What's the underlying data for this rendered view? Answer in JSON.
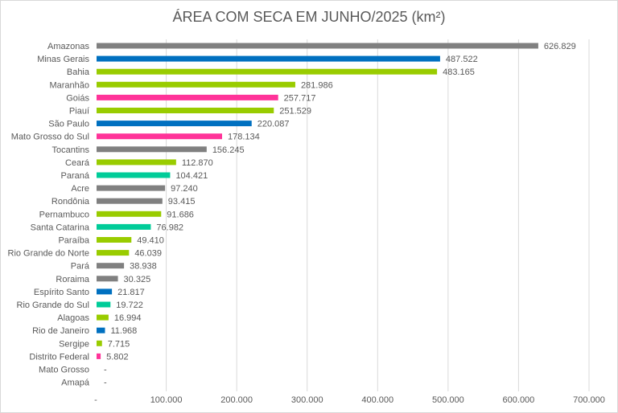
{
  "chart_data": {
    "type": "bar",
    "orientation": "horizontal",
    "title": "ÁREA COM SECA EM JUNHO/2025 (km²)",
    "xlabel": "",
    "ylabel": "",
    "xlim": [
      0,
      700000
    ],
    "x_ticks": [
      "-",
      "100.000",
      "200.000",
      "300.000",
      "400.000",
      "500.000",
      "600.000",
      "700.000"
    ],
    "x_tick_values": [
      0,
      100000,
      200000,
      300000,
      400000,
      500000,
      600000,
      700000
    ],
    "grid": true,
    "legend": "none",
    "colors": {
      "gray": "#808080",
      "blue": "#0070C0",
      "green": "#99CC00",
      "pink": "#FF3399",
      "teal": "#00CC99"
    },
    "categories": [
      "Amazonas",
      "Minas Gerais",
      "Bahia",
      "Maranhão",
      "Goiás",
      "Piauí",
      "São Paulo",
      "Mato Grosso do Sul",
      "Tocantins",
      "Ceará",
      "Paraná",
      "Acre",
      "Rondônia",
      "Pernambuco",
      "Santa Catarina",
      "Paraíba",
      "Rio Grande do Norte",
      "Pará",
      "Roraima",
      "Espírito Santo",
      "Rio Grande do Sul",
      "Alagoas",
      "Rio de Janeiro",
      "Sergipe",
      "Distrito Federal",
      "Mato Grosso",
      "Amapá"
    ],
    "values": [
      626829,
      487522,
      483165,
      281986,
      257717,
      251529,
      220087,
      178134,
      156245,
      112870,
      104421,
      97240,
      93415,
      91686,
      76982,
      49410,
      46039,
      38938,
      30325,
      21817,
      19722,
      16994,
      11968,
      7715,
      5802,
      0,
      0
    ],
    "data_labels": [
      "626.829",
      "487.522",
      "483.165",
      "281.986",
      "257.717",
      "251.529",
      "220.087",
      "178.134",
      "156.245",
      "112.870",
      "104.421",
      "97.240",
      "93.415",
      "91.686",
      "76.982",
      "49.410",
      "46.039",
      "38.938",
      "30.325",
      "21.817",
      "19.722",
      "16.994",
      "11.968",
      "7.715",
      "5.802",
      "-",
      "-"
    ],
    "bar_colors": [
      "gray",
      "blue",
      "green",
      "green",
      "pink",
      "green",
      "blue",
      "pink",
      "gray",
      "green",
      "teal",
      "gray",
      "gray",
      "green",
      "teal",
      "green",
      "green",
      "gray",
      "gray",
      "blue",
      "teal",
      "green",
      "blue",
      "green",
      "pink",
      "gray",
      "gray"
    ]
  }
}
